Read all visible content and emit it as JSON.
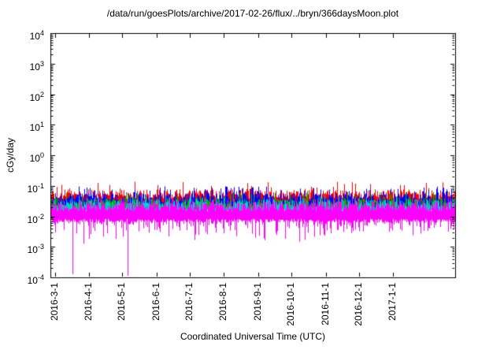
{
  "chart_data": {
    "type": "line",
    "title": "/data/run/goesPlots/archive/2017-02-26/flux/../bryn/366daysMoon.plot",
    "xlabel": "Coordinated Universal Time (UTC)",
    "ylabel": "cGy/day",
    "y_scale": "log10",
    "grid": false,
    "legend": "none",
    "background": "#ffffff",
    "axis_color": "#000000",
    "ylim_exponents": [
      -4,
      4
    ],
    "y_ticks_exponents": [
      4,
      3,
      2,
      1,
      0,
      -1,
      -2,
      -3,
      -4
    ],
    "x_range_days": 366,
    "x_ticks": [
      {
        "label": "2016-3-1",
        "day": 4
      },
      {
        "label": "2016-4-1",
        "day": 35
      },
      {
        "label": "2016-5-1",
        "day": 65
      },
      {
        "label": "2016-6-1",
        "day": 96
      },
      {
        "label": "2016-7-1",
        "day": 126
      },
      {
        "label": "2016-8-1",
        "day": 157
      },
      {
        "label": "2016-9-1",
        "day": 188
      },
      {
        "label": "2016-10-1",
        "day": 218
      },
      {
        "label": "2016-11-1",
        "day": 249
      },
      {
        "label": "2016-12-1",
        "day": 279
      },
      {
        "label": "2017-1-1",
        "day": 310
      }
    ],
    "series": [
      {
        "name": "red-flux",
        "color": "#ff0000",
        "log10_band": [
          -1.8,
          -1.12
        ],
        "peak_log10": -0.85,
        "peak_prob": 0.1
      },
      {
        "name": "blue-flux",
        "color": "#0000ff",
        "log10_band": [
          -1.8,
          -1.25
        ],
        "peak_log10": -1.02,
        "peak_prob": 0.12
      },
      {
        "name": "green-flux",
        "color": "#00b000",
        "log10_band": [
          -1.85,
          -1.4
        ],
        "peak_log10": -1.2,
        "peak_prob": 0.1
      },
      {
        "name": "cyan-flux",
        "color": "#00d0d0",
        "log10_band": [
          -1.9,
          -1.46
        ],
        "peak_log10": -1.3,
        "peak_prob": 0.1
      },
      {
        "name": "magenta-flux",
        "color": "#ff00ff",
        "log10_band": [
          -2.2,
          -1.52
        ],
        "peak_log10": -1.4,
        "peak_prob": 0.08,
        "down_fuzz": {
          "prob": 0.55,
          "depth": 0.75
        },
        "deep_spikes": [
          {
            "day": 20,
            "log10": -3.9
          },
          {
            "day": 30,
            "log10": -2.9
          },
          {
            "day": 70,
            "log10": -3.95
          }
        ]
      }
    ]
  }
}
